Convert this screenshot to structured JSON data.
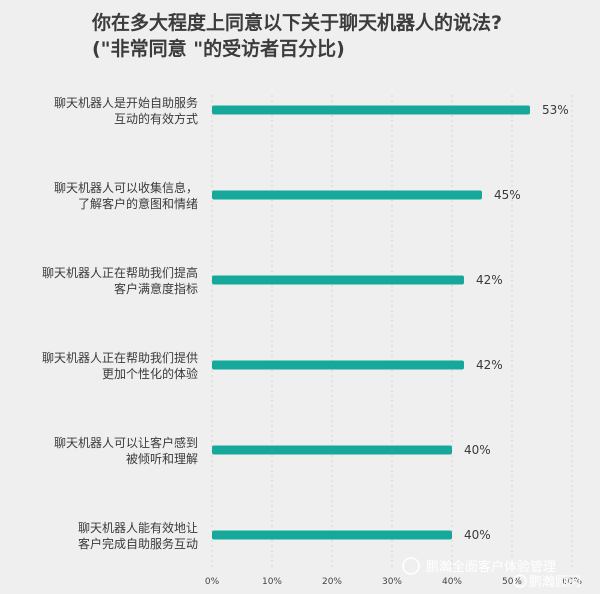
{
  "chart_data": {
    "type": "bar",
    "orientation": "horizontal",
    "title": "你在多大程度上同意以下关于聊天机器人的说法?",
    "subtitle": "(\"非常同意 \"的受访者百分比)",
    "categories": [
      [
        "聊天机器人是开始自助服务",
        "互动的有效方式"
      ],
      [
        "聊天机器人可以收集信息，",
        "了解客户的意图和情绪"
      ],
      [
        "聊天机器人正在帮助我们提高",
        "客户满意度指标"
      ],
      [
        "聊天机器人正在帮助我们提供",
        "更加个性化的体验"
      ],
      [
        "聊天机器人可以让客户感到",
        "被倾听和理解"
      ],
      [
        "聊天机器人能有效地让",
        "客户完成自助服务互动"
      ]
    ],
    "values": [
      53,
      45,
      42,
      42,
      40,
      40
    ],
    "value_labels": [
      "53%",
      "45%",
      "42%",
      "42%",
      "40%",
      "40%"
    ],
    "xticks": [
      "0%",
      "10%",
      "20%",
      "30%",
      "40%",
      "50%",
      "60%"
    ],
    "xlim": [
      0,
      60
    ],
    "grid": true,
    "bar_color": "#16a89a"
  },
  "watermark": {
    "text1": "鹏瀚全面客户体验管理",
    "text2": "鹏瀚顾问"
  }
}
